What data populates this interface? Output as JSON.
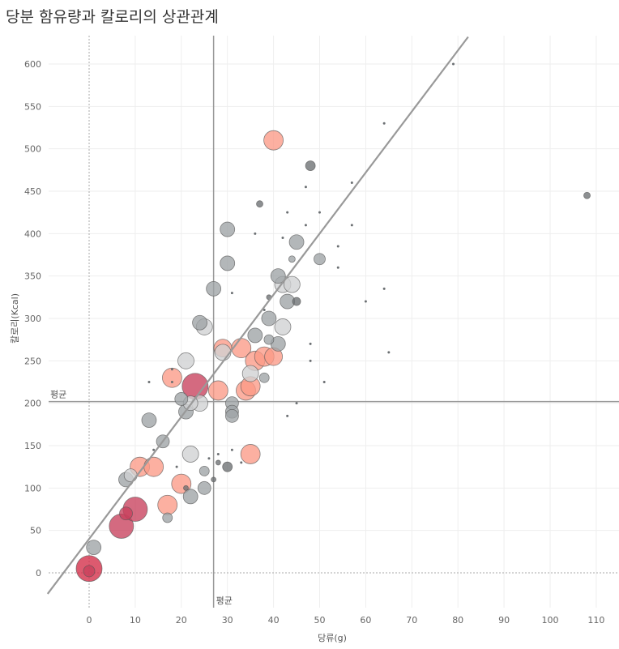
{
  "chart_data": {
    "type": "scatter",
    "title": "당분 함유량과 칼로리의 상관관계",
    "xlabel": "당류(g)",
    "ylabel": "칼로리(Kcal)",
    "xlim": [
      -9,
      115
    ],
    "ylim": [
      -40,
      632
    ],
    "x_ticks": [
      0,
      10,
      20,
      30,
      40,
      50,
      60,
      70,
      80,
      90,
      100,
      110
    ],
    "y_ticks": [
      0,
      50,
      100,
      150,
      200,
      250,
      300,
      350,
      400,
      450,
      500,
      550,
      600
    ],
    "grid": true,
    "reference_lines": [
      {
        "axis": "x",
        "value": 27,
        "label": "평균"
      },
      {
        "axis": "y",
        "value": 202,
        "label": "평균"
      }
    ],
    "trend_line": {
      "slope": 7.2,
      "intercept": 40
    },
    "colors": {
      "gray": "#9ea3a5",
      "light_gray": "#cfd1d2",
      "dark_gray": "#6b6f72",
      "salmon": "#fb9a87",
      "crimson": "#c8405c",
      "red": "#d42b46"
    },
    "points": [
      {
        "x": 0,
        "y": 5,
        "size": 16,
        "color": "red"
      },
      {
        "x": 0,
        "y": 2,
        "size": 7,
        "color": "crimson"
      },
      {
        "x": 1,
        "y": 30,
        "size": 9,
        "color": "gray"
      },
      {
        "x": 7,
        "y": 55,
        "size": 15,
        "color": "crimson"
      },
      {
        "x": 8,
        "y": 70,
        "size": 8,
        "color": "crimson"
      },
      {
        "x": 10,
        "y": 75,
        "size": 15,
        "color": "crimson"
      },
      {
        "x": 8,
        "y": 110,
        "size": 9,
        "color": "gray"
      },
      {
        "x": 9,
        "y": 115,
        "size": 8,
        "color": "light_gray"
      },
      {
        "x": 11,
        "y": 125,
        "size": 12,
        "color": "salmon"
      },
      {
        "x": 14,
        "y": 125,
        "size": 12,
        "color": "salmon"
      },
      {
        "x": 13,
        "y": 180,
        "size": 9,
        "color": "gray"
      },
      {
        "x": 16,
        "y": 155,
        "size": 8,
        "color": "gray"
      },
      {
        "x": 17,
        "y": 65,
        "size": 6,
        "color": "gray"
      },
      {
        "x": 17,
        "y": 80,
        "size": 12,
        "color": "salmon"
      },
      {
        "x": 20,
        "y": 105,
        "size": 12,
        "color": "salmon"
      },
      {
        "x": 22,
        "y": 90,
        "size": 9,
        "color": "gray"
      },
      {
        "x": 21,
        "y": 100,
        "size": 3,
        "color": "dark_gray"
      },
      {
        "x": 20,
        "y": 205,
        "size": 8,
        "color": "gray"
      },
      {
        "x": 21,
        "y": 250,
        "size": 10,
        "color": "light_gray"
      },
      {
        "x": 18,
        "y": 230,
        "size": 12,
        "color": "salmon"
      },
      {
        "x": 21,
        "y": 190,
        "size": 9,
        "color": "gray"
      },
      {
        "x": 22,
        "y": 200,
        "size": 9,
        "color": "light_gray"
      },
      {
        "x": 23,
        "y": 220,
        "size": 16,
        "color": "crimson"
      },
      {
        "x": 22,
        "y": 140,
        "size": 10,
        "color": "light_gray"
      },
      {
        "x": 24,
        "y": 200,
        "size": 10,
        "color": "light_gray"
      },
      {
        "x": 24,
        "y": 295,
        "size": 9,
        "color": "gray"
      },
      {
        "x": 25,
        "y": 290,
        "size": 10,
        "color": "light_gray"
      },
      {
        "x": 25,
        "y": 120,
        "size": 6,
        "color": "gray"
      },
      {
        "x": 25,
        "y": 100,
        "size": 8,
        "color": "gray"
      },
      {
        "x": 27,
        "y": 110,
        "size": 3,
        "color": "dark_gray"
      },
      {
        "x": 27,
        "y": 335,
        "size": 9,
        "color": "gray"
      },
      {
        "x": 28,
        "y": 215,
        "size": 12,
        "color": "salmon"
      },
      {
        "x": 29,
        "y": 265,
        "size": 11,
        "color": "salmon"
      },
      {
        "x": 29,
        "y": 260,
        "size": 10,
        "color": "light_gray"
      },
      {
        "x": 28,
        "y": 130,
        "size": 3,
        "color": "dark_gray"
      },
      {
        "x": 30,
        "y": 125,
        "size": 6,
        "color": "dark_gray"
      },
      {
        "x": 30,
        "y": 405,
        "size": 9,
        "color": "gray"
      },
      {
        "x": 30,
        "y": 365,
        "size": 9,
        "color": "gray"
      },
      {
        "x": 31,
        "y": 200,
        "size": 8,
        "color": "gray"
      },
      {
        "x": 31,
        "y": 190,
        "size": 8,
        "color": "gray"
      },
      {
        "x": 31,
        "y": 185,
        "size": 8,
        "color": "gray"
      },
      {
        "x": 33,
        "y": 265,
        "size": 12,
        "color": "salmon"
      },
      {
        "x": 34,
        "y": 215,
        "size": 12,
        "color": "salmon"
      },
      {
        "x": 35,
        "y": 220,
        "size": 12,
        "color": "salmon"
      },
      {
        "x": 35,
        "y": 140,
        "size": 12,
        "color": "salmon"
      },
      {
        "x": 35,
        "y": 235,
        "size": 10,
        "color": "light_gray"
      },
      {
        "x": 36,
        "y": 250,
        "size": 12,
        "color": "salmon"
      },
      {
        "x": 36,
        "y": 280,
        "size": 9,
        "color": "gray"
      },
      {
        "x": 37,
        "y": 435,
        "size": 4,
        "color": "dark_gray"
      },
      {
        "x": 38,
        "y": 255,
        "size": 12,
        "color": "salmon"
      },
      {
        "x": 38,
        "y": 230,
        "size": 6,
        "color": "gray"
      },
      {
        "x": 39,
        "y": 275,
        "size": 6,
        "color": "gray"
      },
      {
        "x": 39,
        "y": 300,
        "size": 9,
        "color": "gray"
      },
      {
        "x": 39,
        "y": 325,
        "size": 3,
        "color": "dark_gray"
      },
      {
        "x": 40,
        "y": 510,
        "size": 12,
        "color": "salmon"
      },
      {
        "x": 40,
        "y": 255,
        "size": 11,
        "color": "salmon"
      },
      {
        "x": 41,
        "y": 350,
        "size": 9,
        "color": "gray"
      },
      {
        "x": 41,
        "y": 270,
        "size": 9,
        "color": "gray"
      },
      {
        "x": 42,
        "y": 290,
        "size": 10,
        "color": "light_gray"
      },
      {
        "x": 42,
        "y": 340,
        "size": 10,
        "color": "light_gray"
      },
      {
        "x": 43,
        "y": 320,
        "size": 9,
        "color": "gray"
      },
      {
        "x": 44,
        "y": 340,
        "size": 10,
        "color": "light_gray"
      },
      {
        "x": 44,
        "y": 370,
        "size": 4,
        "color": "gray"
      },
      {
        "x": 45,
        "y": 390,
        "size": 9,
        "color": "gray"
      },
      {
        "x": 45,
        "y": 320,
        "size": 5,
        "color": "dark_gray"
      },
      {
        "x": 48,
        "y": 480,
        "size": 6,
        "color": "dark_gray"
      },
      {
        "x": 50,
        "y": 370,
        "size": 7,
        "color": "gray"
      },
      {
        "x": 108,
        "y": 445,
        "size": 4,
        "color": "dark_gray"
      },
      {
        "x": 79,
        "y": 600,
        "size": 1.5,
        "color": "dark_gray"
      },
      {
        "x": 64,
        "y": 530,
        "size": 1.5,
        "color": "dark_gray"
      },
      {
        "x": 57,
        "y": 460,
        "size": 1.5,
        "color": "dark_gray"
      },
      {
        "x": 47,
        "y": 455,
        "size": 1.5,
        "color": "dark_gray"
      },
      {
        "x": 43,
        "y": 425,
        "size": 1.5,
        "color": "dark_gray"
      },
      {
        "x": 50,
        "y": 425,
        "size": 1.5,
        "color": "dark_gray"
      },
      {
        "x": 47,
        "y": 410,
        "size": 1.5,
        "color": "dark_gray"
      },
      {
        "x": 57,
        "y": 410,
        "size": 1.5,
        "color": "dark_gray"
      },
      {
        "x": 36,
        "y": 400,
        "size": 1.5,
        "color": "dark_gray"
      },
      {
        "x": 42,
        "y": 395,
        "size": 1.5,
        "color": "dark_gray"
      },
      {
        "x": 54,
        "y": 385,
        "size": 1.5,
        "color": "dark_gray"
      },
      {
        "x": 54,
        "y": 360,
        "size": 1.5,
        "color": "dark_gray"
      },
      {
        "x": 64,
        "y": 335,
        "size": 1.5,
        "color": "dark_gray"
      },
      {
        "x": 31,
        "y": 330,
        "size": 1.5,
        "color": "dark_gray"
      },
      {
        "x": 60,
        "y": 320,
        "size": 1.5,
        "color": "dark_gray"
      },
      {
        "x": 38,
        "y": 310,
        "size": 1.5,
        "color": "dark_gray"
      },
      {
        "x": 48,
        "y": 270,
        "size": 1.5,
        "color": "dark_gray"
      },
      {
        "x": 65,
        "y": 260,
        "size": 1.5,
        "color": "dark_gray"
      },
      {
        "x": 48,
        "y": 250,
        "size": 1.5,
        "color": "dark_gray"
      },
      {
        "x": 18,
        "y": 240,
        "size": 1.5,
        "color": "dark_gray"
      },
      {
        "x": 13,
        "y": 225,
        "size": 1.5,
        "color": "dark_gray"
      },
      {
        "x": 51,
        "y": 225,
        "size": 1.5,
        "color": "dark_gray"
      },
      {
        "x": 18,
        "y": 225,
        "size": 1.5,
        "color": "dark_gray"
      },
      {
        "x": 45,
        "y": 200,
        "size": 1.5,
        "color": "dark_gray"
      },
      {
        "x": 43,
        "y": 185,
        "size": 1.5,
        "color": "dark_gray"
      },
      {
        "x": 14,
        "y": 145,
        "size": 1.5,
        "color": "dark_gray"
      },
      {
        "x": 31,
        "y": 145,
        "size": 1.5,
        "color": "dark_gray"
      },
      {
        "x": 28,
        "y": 140,
        "size": 1.5,
        "color": "dark_gray"
      },
      {
        "x": 26,
        "y": 135,
        "size": 1.5,
        "color": "dark_gray"
      },
      {
        "x": 19,
        "y": 125,
        "size": 1.5,
        "color": "dark_gray"
      },
      {
        "x": 33,
        "y": 130,
        "size": 1.5,
        "color": "dark_gray"
      }
    ]
  }
}
